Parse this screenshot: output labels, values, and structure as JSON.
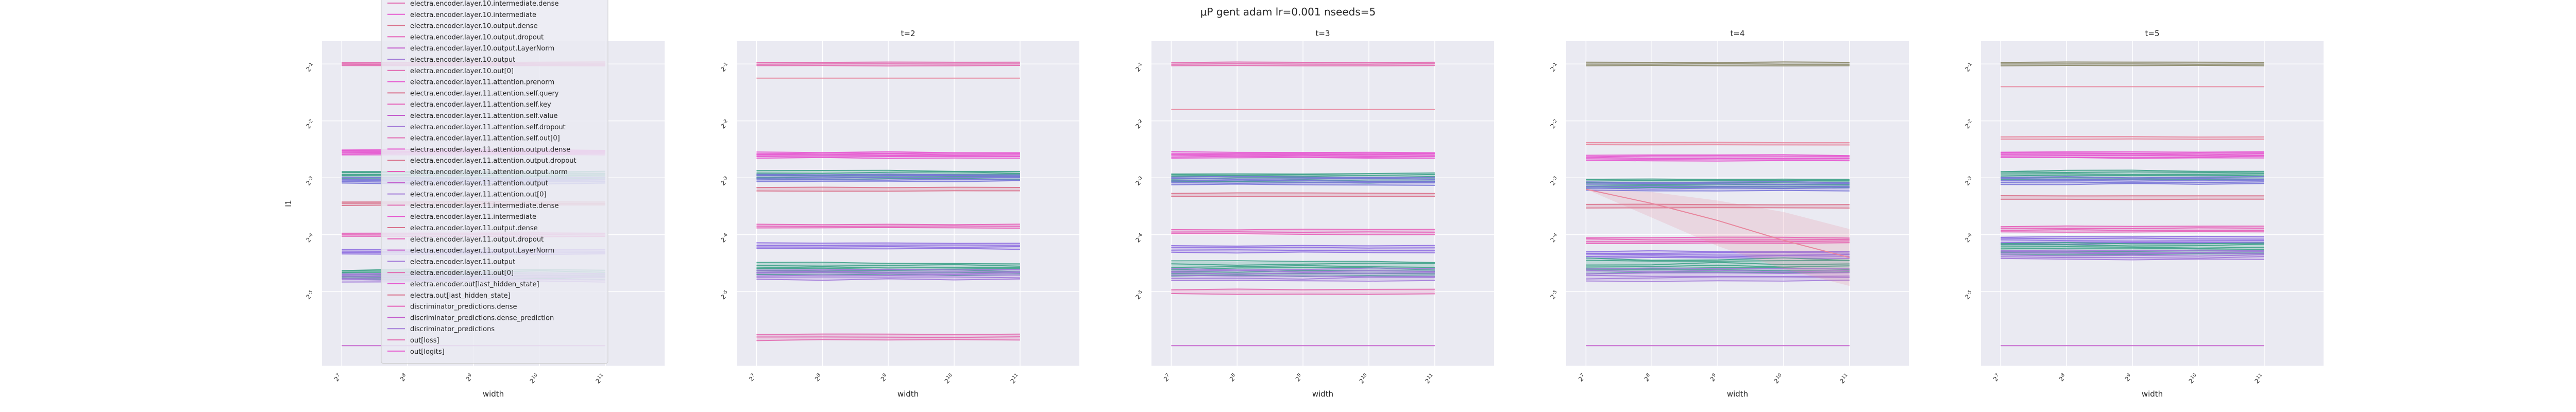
{
  "title": "μP gent adam lr=0.001 nseeds=5",
  "chart_data": {
    "type": "line",
    "title": "μP gent adam lr=0.001 nseeds=5",
    "xlabel": "width",
    "ylabel": "l1",
    "x_ticks": [
      "2^7",
      "2^8",
      "2^9",
      "2^10",
      "2^11"
    ],
    "x_values": [
      128,
      256,
      512,
      1024,
      2048
    ],
    "y_ticks": [
      "2^-1",
      "2^-2",
      "2^-3",
      "2^-4",
      "2^-5"
    ],
    "yscale": "log2",
    "xscale": "log2",
    "grid": true,
    "legend_placement": "top-left overlay on first panel",
    "legend_entries": [
      "electra.encoder.layer.10.intermediate.dense",
      "electra.encoder.layer.10.intermediate",
      "electra.encoder.layer.10.output.dense",
      "electra.encoder.layer.10.output.dropout",
      "electra.encoder.layer.10.output.LayerNorm",
      "electra.encoder.layer.10.output",
      "electra.encoder.layer.10.out[0]",
      "electra.encoder.layer.11.attention.prenorm",
      "electra.encoder.layer.11.attention.self.query",
      "electra.encoder.layer.11.attention.self.key",
      "electra.encoder.layer.11.attention.self.value",
      "electra.encoder.layer.11.attention.self.dropout",
      "electra.encoder.layer.11.attention.self.out[0]",
      "electra.encoder.layer.11.attention.output.dense",
      "electra.encoder.layer.11.attention.output.dropout",
      "electra.encoder.layer.11.attention.output.norm",
      "electra.encoder.layer.11.attention.output",
      "electra.encoder.layer.11.attention.out[0]",
      "electra.encoder.layer.11.intermediate.dense",
      "electra.encoder.layer.11.intermediate",
      "electra.encoder.layer.11.output.dense",
      "electra.encoder.layer.11.output.dropout",
      "electra.encoder.layer.11.output.LayerNorm",
      "electra.encoder.layer.11.output",
      "electra.encoder.layer.11.out[0]",
      "electra.encoder.out[last_hidden_state]",
      "electra.out[last_hidden_state]",
      "discriminator_predictions.dense",
      "discriminator_predictions.dense_prediction",
      "discriminator_predictions",
      "out[loss]",
      "out[logits]"
    ],
    "panels": [
      {
        "title": "",
        "series": [
          {
            "level": -1.0,
            "color": "#e26ab0",
            "count": 4,
            "spread": 0.03
          },
          {
            "level": -2.55,
            "color": "#e659d0",
            "count": 6,
            "spread": 0.04
          },
          {
            "level": -2.95,
            "color": "#3fa28a",
            "count": 6,
            "spread": 0.06
          },
          {
            "level": -3.05,
            "color": "#7a77d8",
            "count": 5,
            "spread": 0.05
          },
          {
            "level": -3.45,
            "color": "#d9718b",
            "count": 3,
            "spread": 0.03
          },
          {
            "level": -4.0,
            "color": "#e660b8",
            "count": 3,
            "spread": 0.03
          },
          {
            "level": -4.3,
            "color": "#8f6fe0",
            "count": 4,
            "spread": 0.04
          },
          {
            "level": -4.7,
            "color": "#3fa28a",
            "count": 7,
            "spread": 0.08
          },
          {
            "level": -4.75,
            "color": "#a27ad8",
            "count": 6,
            "spread": 0.07
          },
          {
            "level": -5.95,
            "color": "#c35ccc",
            "count": 1,
            "spread": 0.0
          }
        ]
      },
      {
        "title": "t=2",
        "series": [
          {
            "level": -1.0,
            "color": "#e26ab0",
            "count": 3,
            "spread": 0.03
          },
          {
            "level": -1.25,
            "color": "#e8869d",
            "count": 1,
            "spread": 0.0
          },
          {
            "level": -2.6,
            "color": "#e659d0",
            "count": 6,
            "spread": 0.05
          },
          {
            "level": -2.95,
            "color": "#3fa28a",
            "count": 6,
            "spread": 0.07
          },
          {
            "level": -3.0,
            "color": "#7a77d8",
            "count": 5,
            "spread": 0.06
          },
          {
            "level": -3.2,
            "color": "#d9718b",
            "count": 2,
            "spread": 0.03
          },
          {
            "level": -3.85,
            "color": "#e660b8",
            "count": 3,
            "spread": 0.03
          },
          {
            "level": -4.2,
            "color": "#8f6fe0",
            "count": 4,
            "spread": 0.05
          },
          {
            "level": -4.6,
            "color": "#3fa28a",
            "count": 7,
            "spread": 0.1
          },
          {
            "level": -4.7,
            "color": "#a27ad8",
            "count": 6,
            "spread": 0.09
          },
          {
            "level": -5.8,
            "color": "#e26ab0",
            "count": 3,
            "spread": 0.05
          }
        ]
      },
      {
        "title": "t=3",
        "series": [
          {
            "level": -1.0,
            "color": "#e26ab0",
            "count": 3,
            "spread": 0.03
          },
          {
            "level": -1.8,
            "color": "#e8869d",
            "count": 1,
            "spread": 0.0
          },
          {
            "level": -2.6,
            "color": "#e659d0",
            "count": 6,
            "spread": 0.05
          },
          {
            "level": -3.0,
            "color": "#3fa28a",
            "count": 6,
            "spread": 0.08
          },
          {
            "level": -3.05,
            "color": "#7a77d8",
            "count": 5,
            "spread": 0.07
          },
          {
            "level": -3.3,
            "color": "#d9718b",
            "count": 2,
            "spread": 0.03
          },
          {
            "level": -3.95,
            "color": "#e660b8",
            "count": 3,
            "spread": 0.04
          },
          {
            "level": -4.25,
            "color": "#8f6fe0",
            "count": 4,
            "spread": 0.06
          },
          {
            "level": -4.6,
            "color": "#3fa28a",
            "count": 7,
            "spread": 0.12
          },
          {
            "level": -4.7,
            "color": "#a27ad8",
            "count": 6,
            "spread": 0.1
          },
          {
            "level": -5.0,
            "color": "#e26ab0",
            "count": 2,
            "spread": 0.04
          },
          {
            "level": -5.95,
            "color": "#c35ccc",
            "count": 1,
            "spread": 0.0
          }
        ]
      },
      {
        "title": "t=4",
        "series": [
          {
            "level": -1.0,
            "color": "#8c8a6a",
            "count": 3,
            "spread": 0.03
          },
          {
            "level": -2.4,
            "color": "#e8869d",
            "count": 2,
            "spread": 0.02
          },
          {
            "level": -2.65,
            "color": "#e659d0",
            "count": 5,
            "spread": 0.05
          },
          {
            "level": -3.1,
            "color": "#3fa28a",
            "count": 6,
            "spread": 0.08
          },
          {
            "level": -3.15,
            "color": "#7a77d8",
            "count": 5,
            "spread": 0.07
          },
          {
            "level": -3.5,
            "color": "#d9718b",
            "count": 2,
            "spread": 0.03
          },
          {
            "level": -4.1,
            "color": "#e660b8",
            "count": 4,
            "spread": 0.05
          },
          {
            "level": -4.35,
            "color": "#8f6fe0",
            "count": 5,
            "spread": 0.06
          },
          {
            "level": -4.55,
            "color": "#3fa28a",
            "count": 7,
            "spread": 0.12
          },
          {
            "level": -4.7,
            "color": "#a27ad8",
            "count": 6,
            "spread": 0.1
          },
          {
            "level": -5.95,
            "color": "#c35ccc",
            "count": 1,
            "spread": 0.0
          }
        ],
        "annotation_band": {
          "color": "#e8869d"
        }
      },
      {
        "title": "t=5",
        "series": [
          {
            "level": -1.0,
            "color": "#8c8a6a",
            "count": 3,
            "spread": 0.03
          },
          {
            "level": -1.4,
            "color": "#e8869d",
            "count": 1,
            "spread": 0.0
          },
          {
            "level": -2.3,
            "color": "#e8869d",
            "count": 2,
            "spread": 0.02
          },
          {
            "level": -2.6,
            "color": "#e659d0",
            "count": 6,
            "spread": 0.05
          },
          {
            "level": -2.95,
            "color": "#3fa28a",
            "count": 6,
            "spread": 0.07
          },
          {
            "level": -3.05,
            "color": "#7a77d8",
            "count": 5,
            "spread": 0.06
          },
          {
            "level": -3.35,
            "color": "#d9718b",
            "count": 2,
            "spread": 0.03
          },
          {
            "level": -3.9,
            "color": "#e660b8",
            "count": 4,
            "spread": 0.05
          },
          {
            "level": -4.1,
            "color": "#8f6fe0",
            "count": 5,
            "spread": 0.06
          },
          {
            "level": -4.25,
            "color": "#3fa28a",
            "count": 7,
            "spread": 0.1
          },
          {
            "level": -4.35,
            "color": "#a27ad8",
            "count": 6,
            "spread": 0.08
          },
          {
            "level": -5.95,
            "color": "#c35ccc",
            "count": 1,
            "spread": 0.0
          }
        ]
      }
    ]
  },
  "colors": {
    "panel_bg": "#eaeaf2",
    "grid": "#ffffff",
    "legend_bg": "#eaeaf2",
    "text": "#262626"
  }
}
